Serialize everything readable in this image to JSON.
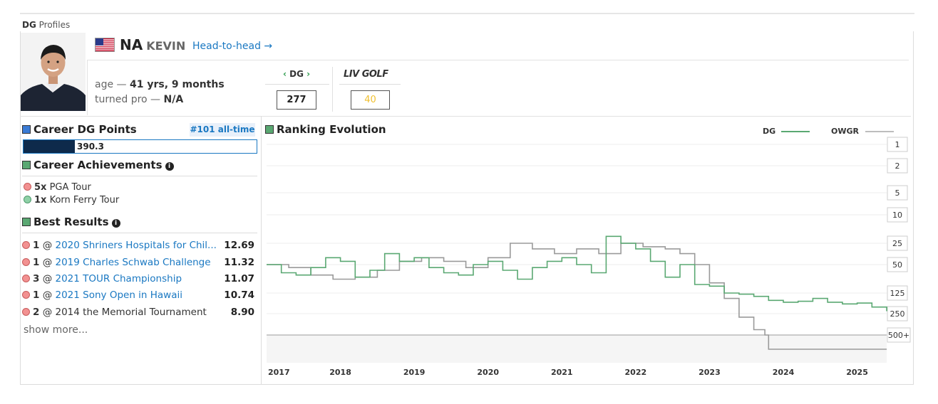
{
  "header": {
    "section_prefix": "DG",
    "section_label": "Profiles"
  },
  "player": {
    "last_name": "NA",
    "first_name": "KEVIN",
    "h2h_link": "Head-to-head →",
    "age_label": "age — ",
    "age_value": "41 yrs, 9 months",
    "pro_label": "turned pro — ",
    "pro_value": "N/A"
  },
  "rankings": {
    "dg_label_left": "‹",
    "dg_label": "DG",
    "dg_label_right": "›",
    "dg_value": "277",
    "liv_logo_text": "LIV GOLF",
    "liv_value": "40"
  },
  "career_points": {
    "title": "Career DG Points",
    "badge": "#101 all-time",
    "value": "390.3",
    "bar_fraction": 0.22,
    "bar_color": "#0e2a4b"
  },
  "achievements": {
    "title": "Career Achievements",
    "items": [
      {
        "count": "5x",
        "label": "PGA Tour",
        "color": "red"
      },
      {
        "count": "1x",
        "label": "Korn Ferry Tour",
        "color": "green"
      }
    ]
  },
  "best_results": {
    "title": "Best Results",
    "items": [
      {
        "finish": "1",
        "at": "@",
        "event": "2020 Shriners Hospitals for Chil...",
        "score": "12.69"
      },
      {
        "finish": "1",
        "at": "@",
        "event": "2019 Charles Schwab Challenge",
        "score": "11.32"
      },
      {
        "finish": "3",
        "at": "@",
        "event": "2021 TOUR Championship",
        "score": "11.07"
      },
      {
        "finish": "1",
        "at": "@",
        "event": "2021 Sony Open in Hawaii",
        "score": "10.74"
      },
      {
        "finish": "2",
        "at": "@",
        "event": "2014 the Memorial Tournament",
        "score": "8.90"
      }
    ],
    "show_more": "show more..."
  },
  "chart_data": {
    "type": "line",
    "title": "Ranking Evolution",
    "legend": [
      {
        "name": "DG",
        "color": "#5aa872"
      },
      {
        "name": "OWGR",
        "color": "#bdbdbd"
      }
    ],
    "legend_placement": "top-right",
    "y_scale": "log",
    "y_ticks": [
      "1",
      "2",
      "5",
      "10",
      "25",
      "50",
      "125",
      "250",
      "500+"
    ],
    "x_ticks": [
      "2017",
      "2018",
      "2019",
      "2020",
      "2021",
      "2022",
      "2023",
      "2024",
      "2025"
    ],
    "x_range": [
      2017.0,
      2025.4
    ],
    "series": [
      {
        "name": "DG",
        "color": "#5aa872",
        "x": [
          2017.0,
          2017.2,
          2017.4,
          2017.6,
          2017.8,
          2018.0,
          2018.2,
          2018.4,
          2018.6,
          2018.8,
          2019.0,
          2019.2,
          2019.4,
          2019.6,
          2019.8,
          2020.0,
          2020.2,
          2020.4,
          2020.6,
          2020.8,
          2021.0,
          2021.2,
          2021.4,
          2021.6,
          2021.8,
          2022.0,
          2022.2,
          2022.4,
          2022.6,
          2022.8,
          2023.0,
          2023.2,
          2023.4,
          2023.6,
          2023.8,
          2024.0,
          2024.2,
          2024.4,
          2024.6,
          2024.8,
          2025.0,
          2025.2,
          2025.4
        ],
        "y": [
          50,
          65,
          70,
          55,
          40,
          45,
          75,
          60,
          35,
          45,
          40,
          55,
          65,
          70,
          50,
          45,
          60,
          80,
          55,
          45,
          40,
          50,
          65,
          20,
          25,
          30,
          45,
          75,
          50,
          95,
          100,
          125,
          130,
          140,
          160,
          170,
          165,
          150,
          170,
          180,
          175,
          200,
          230
        ]
      },
      {
        "name": "OWGR",
        "color": "#9a9a9a",
        "x": [
          2017.0,
          2017.3,
          2017.6,
          2017.9,
          2018.2,
          2018.5,
          2018.8,
          2019.1,
          2019.4,
          2019.7,
          2020.0,
          2020.3,
          2020.6,
          2020.9,
          2021.2,
          2021.5,
          2021.8,
          2022.1,
          2022.4,
          2022.6,
          2022.8,
          2023.0,
          2023.2,
          2023.4,
          2023.6,
          2023.75,
          2023.8,
          2024.2,
          2024.6,
          2025.0,
          2025.4
        ],
        "y": [
          50,
          55,
          70,
          80,
          75,
          60,
          45,
          40,
          45,
          55,
          40,
          25,
          30,
          35,
          30,
          35,
          25,
          28,
          30,
          35,
          50,
          90,
          150,
          280,
          420,
          500,
          700,
          700,
          700,
          700,
          700
        ]
      }
    ]
  }
}
